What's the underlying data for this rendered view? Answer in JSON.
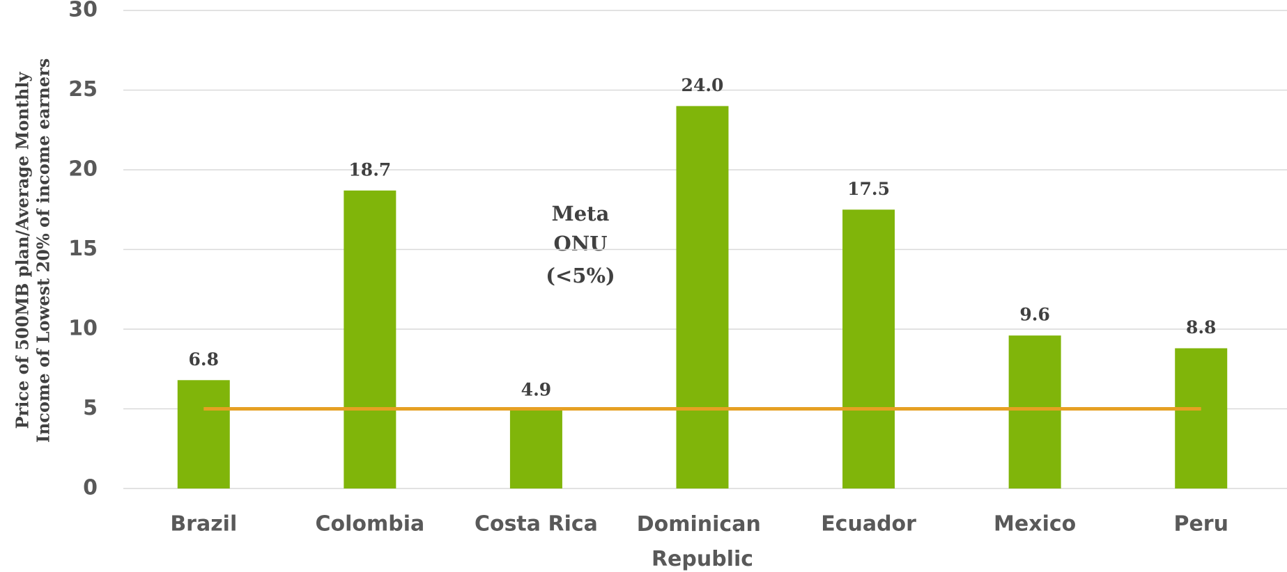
{
  "chart_data": {
    "type": "bar",
    "y_label_lines": [
      "Price of 500MB plan/Average Monthly",
      "Income of Lowest 20% of income earners"
    ],
    "categories": [
      "Brazil",
      "Colombia",
      "Costa Rica",
      "Dominican Republic",
      "Ecuador",
      "Mexico",
      "Peru"
    ],
    "values": [
      6.8,
      18.7,
      4.9,
      24.0,
      17.5,
      9.6,
      8.8
    ],
    "value_labels": [
      "6.8",
      "18.7",
      "4.9",
      "24.0",
      "17.5",
      "9.6",
      "8.8"
    ],
    "color": "#80b50a",
    "target_line": {
      "values": [
        5,
        5,
        5,
        5,
        5,
        5,
        5
      ],
      "color": "#e6a023"
    },
    "annotation_lines": [
      "Meta",
      "ONU",
      "(<5%)"
    ],
    "ylim": [
      0,
      30
    ],
    "yticks": [
      0,
      5,
      10,
      15,
      20,
      25,
      30
    ],
    "grid": true
  }
}
